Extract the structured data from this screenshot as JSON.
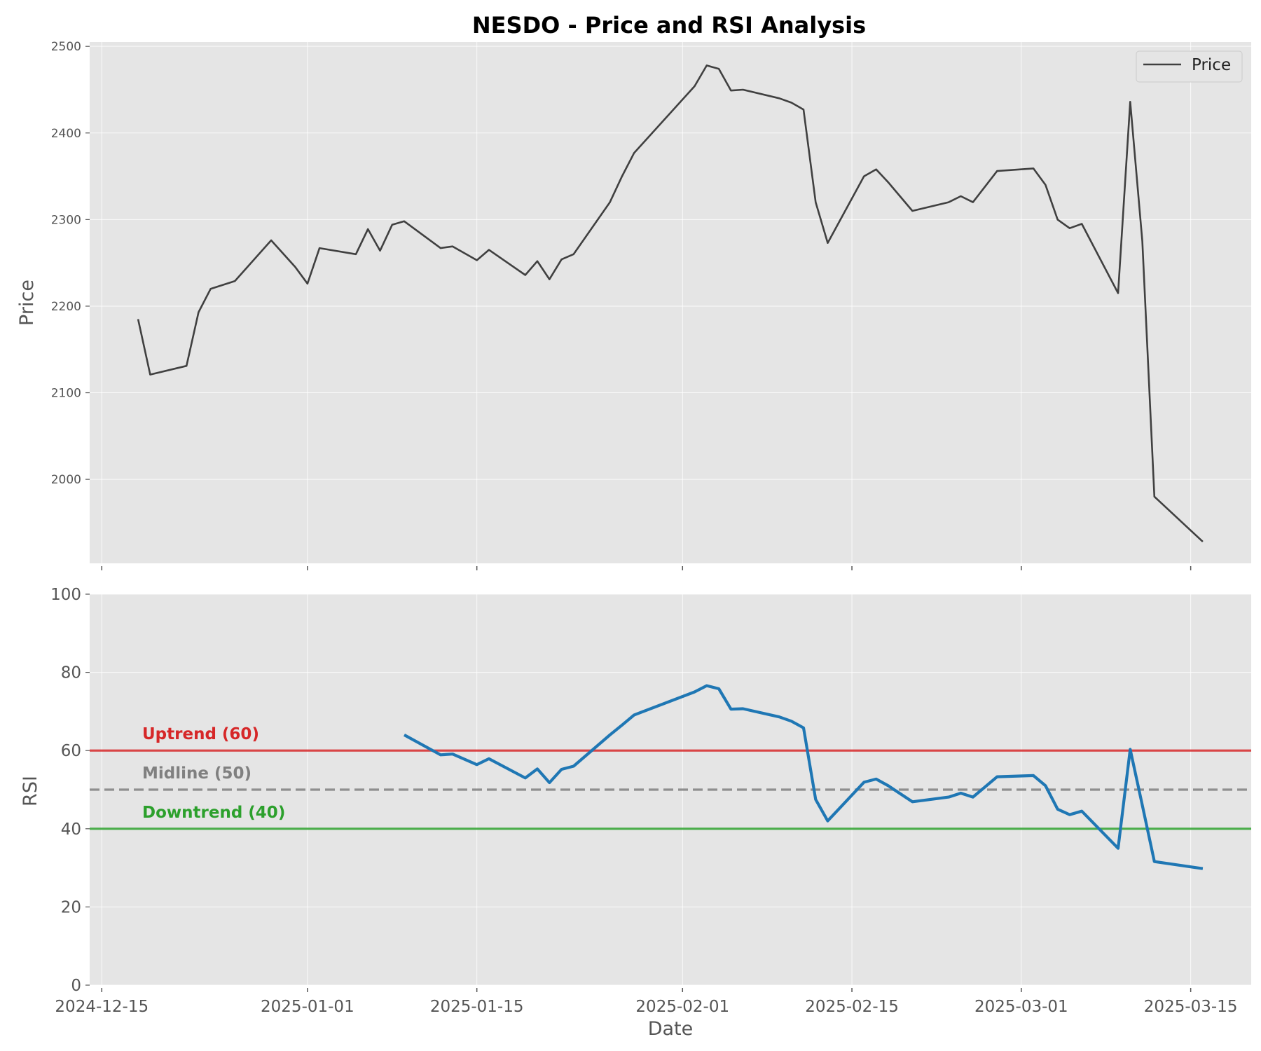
{
  "chart_data": {
    "type": "line",
    "title": "NESDO - Price and RSI Analysis",
    "xlabel": "Date",
    "x_ticks": [
      "2024-12-15",
      "2025-01-01",
      "2025-01-15",
      "2025-02-01",
      "2025-02-15",
      "2025-03-01",
      "2025-03-15"
    ],
    "x_range": [
      "2024-12-14",
      "2025-03-20"
    ],
    "grid": true,
    "price_panel": {
      "ylabel": "Price",
      "ylim": [
        1903,
        2505
      ],
      "yticks": [
        2000,
        2100,
        2200,
        2300,
        2400,
        2500
      ],
      "legend": {
        "placement": "top-right",
        "entries": [
          "Price"
        ]
      },
      "series": [
        {
          "name": "Price",
          "color": "#404040",
          "points": [
            [
              "2024-12-18",
              2185
            ],
            [
              "2024-12-19",
              2121
            ],
            [
              "2024-12-22",
              2131
            ],
            [
              "2024-12-23",
              2193
            ],
            [
              "2024-12-24",
              2220
            ],
            [
              "2024-12-26",
              2229
            ],
            [
              "2024-12-29",
              2276
            ],
            [
              "2024-12-31",
              2245
            ],
            [
              "2025-01-01",
              2226
            ],
            [
              "2025-01-02",
              2267
            ],
            [
              "2025-01-05",
              2260
            ],
            [
              "2025-01-06",
              2289
            ],
            [
              "2025-01-07",
              2264
            ],
            [
              "2025-01-08",
              2294
            ],
            [
              "2025-01-09",
              2298
            ],
            [
              "2025-01-12",
              2267
            ],
            [
              "2025-01-13",
              2269
            ],
            [
              "2025-01-15",
              2253
            ],
            [
              "2025-01-16",
              2265
            ],
            [
              "2025-01-19",
              2236
            ],
            [
              "2025-01-20",
              2252
            ],
            [
              "2025-01-21",
              2231
            ],
            [
              "2025-01-22",
              2254
            ],
            [
              "2025-01-23",
              2260
            ],
            [
              "2025-01-26",
              2320
            ],
            [
              "2025-01-27",
              2350
            ],
            [
              "2025-01-28",
              2377
            ],
            [
              "2025-02-02",
              2454
            ],
            [
              "2025-02-03",
              2478
            ],
            [
              "2025-02-04",
              2474
            ],
            [
              "2025-02-05",
              2449
            ],
            [
              "2025-02-06",
              2450
            ],
            [
              "2025-02-09",
              2440
            ],
            [
              "2025-02-10",
              2435
            ],
            [
              "2025-02-11",
              2427
            ],
            [
              "2025-02-12",
              2320
            ],
            [
              "2025-02-13",
              2273
            ],
            [
              "2025-02-16",
              2350
            ],
            [
              "2025-02-17",
              2358
            ],
            [
              "2025-02-18",
              2343
            ],
            [
              "2025-02-20",
              2310
            ],
            [
              "2025-02-23",
              2320
            ],
            [
              "2025-02-24",
              2327
            ],
            [
              "2025-02-25",
              2320
            ],
            [
              "2025-02-27",
              2356
            ],
            [
              "2025-03-02",
              2359
            ],
            [
              "2025-03-03",
              2340
            ],
            [
              "2025-03-04",
              2300
            ],
            [
              "2025-03-05",
              2290
            ],
            [
              "2025-03-06",
              2295
            ],
            [
              "2025-03-09",
              2215
            ],
            [
              "2025-03-10",
              2436
            ],
            [
              "2025-03-11",
              2275
            ],
            [
              "2025-03-12",
              1980
            ],
            [
              "2025-03-16",
              1928
            ]
          ]
        }
      ]
    },
    "rsi_panel": {
      "ylabel": "RSI",
      "ylim": [
        0,
        100
      ],
      "yticks": [
        0,
        20,
        40,
        60,
        80,
        100
      ],
      "reference_lines": [
        {
          "label": "Uptrend (60)",
          "value": 60,
          "color": "#d62728",
          "style": "solid"
        },
        {
          "label": "Midline (50)",
          "value": 50,
          "color": "#808080",
          "style": "dashed"
        },
        {
          "label": "Downtrend (40)",
          "value": 40,
          "color": "#2ca02c",
          "style": "solid"
        }
      ],
      "series": [
        {
          "name": "RSI",
          "color": "#1f77b4",
          "points": [
            [
              "2025-01-09",
              64.0
            ],
            [
              "2025-01-12",
              58.9
            ],
            [
              "2025-01-13",
              59.1
            ],
            [
              "2025-01-15",
              56.4
            ],
            [
              "2025-01-16",
              57.9
            ],
            [
              "2025-01-19",
              53.0
            ],
            [
              "2025-01-20",
              55.3
            ],
            [
              "2025-01-21",
              51.8
            ],
            [
              "2025-01-22",
              55.2
            ],
            [
              "2025-01-23",
              56.0
            ],
            [
              "2025-01-26",
              64.0
            ],
            [
              "2025-01-27",
              66.5
            ],
            [
              "2025-01-28",
              69.1
            ],
            [
              "2025-02-02",
              75.0
            ],
            [
              "2025-02-03",
              76.6
            ],
            [
              "2025-02-04",
              75.8
            ],
            [
              "2025-02-05",
              70.6
            ],
            [
              "2025-02-06",
              70.7
            ],
            [
              "2025-02-09",
              68.6
            ],
            [
              "2025-02-10",
              67.5
            ],
            [
              "2025-02-11",
              65.8
            ],
            [
              "2025-02-12",
              47.5
            ],
            [
              "2025-02-13",
              42.0
            ],
            [
              "2025-02-16",
              51.9
            ],
            [
              "2025-02-17",
              52.7
            ],
            [
              "2025-02-18",
              51.0
            ],
            [
              "2025-02-20",
              46.9
            ],
            [
              "2025-02-23",
              48.1
            ],
            [
              "2025-02-24",
              49.1
            ],
            [
              "2025-02-25",
              48.1
            ],
            [
              "2025-02-27",
              53.3
            ],
            [
              "2025-03-02",
              53.6
            ],
            [
              "2025-03-03",
              51.0
            ],
            [
              "2025-03-04",
              45.0
            ],
            [
              "2025-03-05",
              43.6
            ],
            [
              "2025-03-06",
              44.5
            ],
            [
              "2025-03-09",
              35.0
            ],
            [
              "2025-03-10",
              60.3
            ],
            [
              "2025-03-11",
              46.0
            ],
            [
              "2025-03-12",
              31.6
            ],
            [
              "2025-03-16",
              29.8
            ]
          ]
        }
      ]
    }
  }
}
